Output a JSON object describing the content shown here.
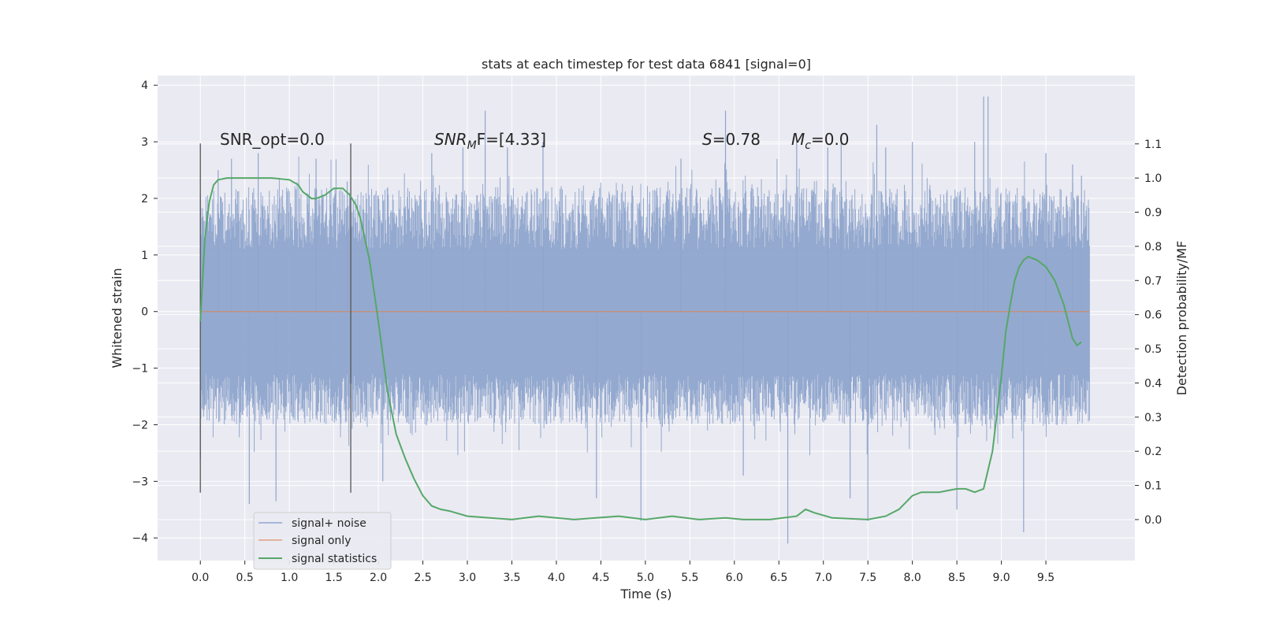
{
  "chart_data": {
    "type": "line",
    "title": "stats at each timestep for test data 6841 [signal=0]",
    "xlabel": "Time (s)",
    "ylabel": "Whitened strain",
    "y2label": "Detection probability/MF",
    "xlim": [
      -0.48,
      10.5
    ],
    "ylim": [
      -4.4,
      4.17
    ],
    "y2lim": [
      -0.12,
      1.3
    ],
    "xticks": [
      "0.0",
      "0.5",
      "1.0",
      "1.5",
      "2.0",
      "2.5",
      "3.0",
      "3.5",
      "4.0",
      "4.5",
      "5.0",
      "5.5",
      "6.0",
      "6.5",
      "7.0",
      "7.5",
      "8.0",
      "8.5",
      "9.0",
      "9.5"
    ],
    "yticks": [
      "−4",
      "−3",
      "−2",
      "−1",
      "0",
      "1",
      "2",
      "3",
      "4"
    ],
    "y2ticks": [
      "0.0",
      "0.1",
      "0.2",
      "0.3",
      "0.4",
      "0.5",
      "0.6",
      "0.7",
      "0.8",
      "0.9",
      "1.0",
      "1.1"
    ],
    "grid": true,
    "legend_position": "lower-left",
    "colors": {
      "noise": "#8fa5cc",
      "signal_only": "#dd8452",
      "statistics": "#55a868",
      "background": "#eaeaf2",
      "grid": "#ffffff"
    },
    "annotations": {
      "snr_opt": "SNR_opt=0.0",
      "snr_mf_main": "SNR",
      "snr_mf_sub": "M",
      "snr_mf_tail": "F=[4.33]",
      "s_main": "S",
      "s_tail": "=0.78",
      "mc_main": "M",
      "mc_sub": "c",
      "mc_tail": "=0.0"
    },
    "vertical_markers_s": [
      0.0,
      1.69
    ],
    "series": [
      {
        "name": "signal+ noise",
        "t_range": [
          0.0,
          9.99
        ],
        "typical_envelope": [
          -2.0,
          2.2
        ],
        "peaks": [
          [
            0.0,
            2.05
          ],
          [
            0.0,
            -2.6
          ],
          [
            0.2,
            2.5
          ],
          [
            0.35,
            2.7
          ],
          [
            0.55,
            -3.4
          ],
          [
            0.65,
            2.8
          ],
          [
            0.85,
            -3.35
          ],
          [
            1.3,
            2.7
          ],
          [
            1.65,
            2.3
          ],
          [
            2.05,
            -3.0
          ],
          [
            2.6,
            2.8
          ],
          [
            2.95,
            2.9
          ],
          [
            3.2,
            3.55
          ],
          [
            3.45,
            2.9
          ],
          [
            3.85,
            3.0
          ],
          [
            4.45,
            -3.3
          ],
          [
            4.95,
            -3.7
          ],
          [
            5.4,
            2.7
          ],
          [
            5.9,
            3.55
          ],
          [
            6.1,
            -2.9
          ],
          [
            6.6,
            -4.1
          ],
          [
            6.7,
            3.0
          ],
          [
            7.05,
            2.9
          ],
          [
            7.2,
            3.0
          ],
          [
            7.3,
            -3.3
          ],
          [
            7.5,
            -3.7
          ],
          [
            7.6,
            3.3
          ],
          [
            7.7,
            2.9
          ],
          [
            8.0,
            3.0
          ],
          [
            8.5,
            -3.5
          ],
          [
            8.7,
            3.0
          ],
          [
            8.8,
            3.8
          ],
          [
            8.85,
            3.8
          ],
          [
            9.25,
            -3.9
          ],
          [
            9.5,
            2.8
          ],
          [
            9.8,
            2.6
          ],
          [
            9.9,
            2.4
          ]
        ]
      },
      {
        "name": "signal only",
        "values_note": "",
        "t": [
          0.0,
          9.99
        ],
        "y": [
          0.0,
          0.0
        ]
      },
      {
        "name": "signal statistics",
        "t": [
          0.0,
          0.05,
          0.1,
          0.15,
          0.2,
          0.3,
          0.5,
          0.8,
          1.0,
          1.1,
          1.15,
          1.25,
          1.3,
          1.4,
          1.5,
          1.6,
          1.68,
          1.75,
          1.8,
          1.9,
          2.0,
          2.1,
          2.2,
          2.3,
          2.4,
          2.5,
          2.6,
          2.7,
          2.8,
          3.0,
          3.5,
          3.8,
          4.2,
          4.7,
          5.0,
          5.3,
          5.6,
          5.9,
          6.1,
          6.4,
          6.7,
          6.8,
          6.9,
          7.1,
          7.5,
          7.7,
          7.85,
          8.0,
          8.1,
          8.3,
          8.5,
          8.6,
          8.7,
          8.8,
          8.9,
          9.0,
          9.05,
          9.1,
          9.15,
          9.2,
          9.25,
          9.3,
          9.4,
          9.5,
          9.6,
          9.7,
          9.75,
          9.8,
          9.85,
          9.9
        ],
        "y": [
          0.58,
          0.82,
          0.93,
          0.98,
          0.995,
          1.0,
          1.0,
          1.0,
          0.995,
          0.98,
          0.96,
          0.94,
          0.94,
          0.95,
          0.97,
          0.97,
          0.95,
          0.92,
          0.88,
          0.76,
          0.58,
          0.38,
          0.25,
          0.18,
          0.12,
          0.07,
          0.04,
          0.03,
          0.025,
          0.01,
          0.0,
          0.01,
          0.0,
          0.01,
          0.0,
          0.01,
          0.0,
          0.005,
          0.0,
          0.0,
          0.01,
          0.03,
          0.02,
          0.005,
          0.0,
          0.01,
          0.03,
          0.07,
          0.08,
          0.08,
          0.09,
          0.09,
          0.08,
          0.09,
          0.2,
          0.42,
          0.55,
          0.63,
          0.7,
          0.74,
          0.76,
          0.77,
          0.76,
          0.74,
          0.7,
          0.63,
          0.58,
          0.53,
          0.51,
          0.52
        ]
      }
    ]
  }
}
